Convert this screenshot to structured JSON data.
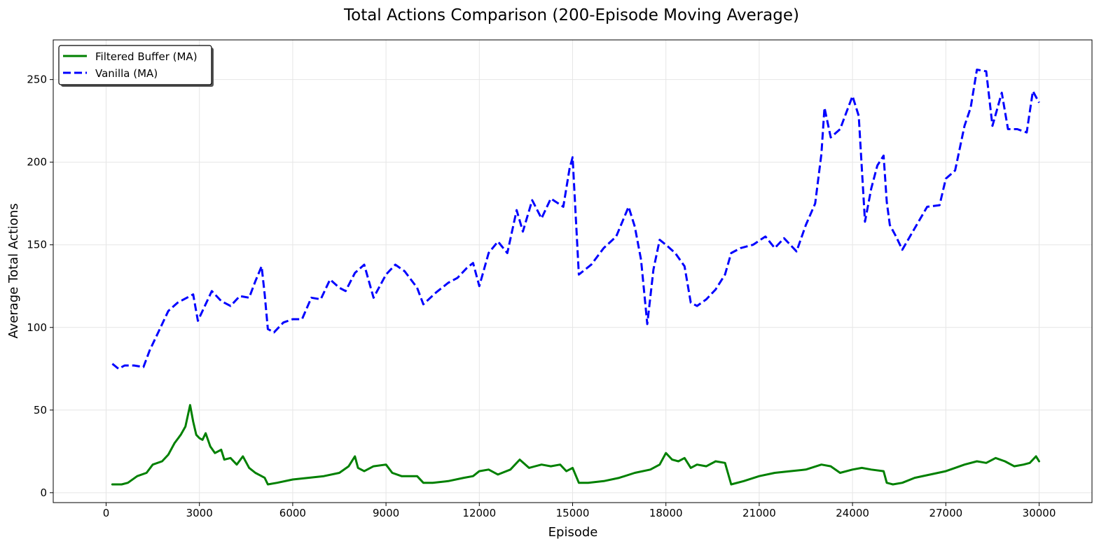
{
  "chart_data": {
    "type": "line",
    "title": "Total Actions Comparison (200-Episode Moving Average)",
    "xlabel": "Episode",
    "ylabel": "Average Total Actions",
    "xlim": [
      -1700,
      31700
    ],
    "ylim": [
      -6,
      274
    ],
    "xticks": [
      0,
      3000,
      6000,
      9000,
      12000,
      15000,
      18000,
      21000,
      24000,
      27000,
      30000
    ],
    "xtick_labels": [
      "0",
      "3000",
      "6000",
      "9000",
      "12000",
      "15000",
      "18000",
      "21000",
      "24000",
      "27000",
      "30000"
    ],
    "yticks": [
      0,
      50,
      100,
      150,
      200,
      250
    ],
    "ytick_labels": [
      "0",
      "50",
      "100",
      "150",
      "200",
      "250"
    ],
    "grid": true,
    "legend_position": "top-left",
    "series": [
      {
        "name": "Filtered Buffer (MA)",
        "color": "#008000",
        "style": "solid",
        "x": [
          200,
          500,
          700,
          1000,
          1300,
          1500,
          1800,
          2000,
          2200,
          2400,
          2550,
          2700,
          2800,
          2900,
          3000,
          3100,
          3200,
          3350,
          3500,
          3700,
          3800,
          4000,
          4200,
          4400,
          4600,
          4800,
          5000,
          5100,
          5200,
          5500,
          6000,
          6500,
          7000,
          7500,
          7800,
          8000,
          8100,
          8300,
          8600,
          9000,
          9200,
          9500,
          10000,
          10200,
          10500,
          11000,
          11500,
          11800,
          12000,
          12300,
          12600,
          13000,
          13300,
          13600,
          14000,
          14300,
          14600,
          14800,
          15000,
          15200,
          15500,
          16000,
          16500,
          17000,
          17500,
          17800,
          18000,
          18200,
          18400,
          18600,
          18800,
          19000,
          19300,
          19600,
          19900,
          20100,
          20500,
          21000,
          21500,
          22000,
          22500,
          23000,
          23300,
          23600,
          24000,
          24300,
          24600,
          25000,
          25100,
          25300,
          25600,
          26000,
          26500,
          27000,
          27300,
          27600,
          28000,
          28300,
          28600,
          28900,
          29200,
          29500,
          29700,
          29900,
          30000
        ],
        "y": [
          5,
          5,
          6,
          10,
          12,
          17,
          19,
          23,
          30,
          35,
          40,
          53,
          43,
          35,
          33,
          32,
          36,
          28,
          24,
          26,
          20,
          21,
          17,
          22,
          15,
          12,
          10,
          9,
          5,
          6,
          8,
          9,
          10,
          12,
          16,
          22,
          15,
          13,
          16,
          17,
          12,
          10,
          10,
          6,
          6,
          7,
          9,
          10,
          13,
          14,
          11,
          14,
          20,
          15,
          17,
          16,
          17,
          13,
          15,
          6,
          6,
          7,
          9,
          12,
          14,
          17,
          24,
          20,
          19,
          21,
          15,
          17,
          16,
          19,
          18,
          5,
          7,
          10,
          12,
          13,
          14,
          17,
          16,
          12,
          14,
          15,
          14,
          13,
          6,
          5,
          6,
          9,
          11,
          13,
          15,
          17,
          19,
          18,
          21,
          19,
          16,
          17,
          18,
          22,
          19
        ]
      },
      {
        "name": "Vanilla (MA)",
        "color": "#0000ff",
        "style": "dashed",
        "x": [
          200,
          400,
          600,
          900,
          1200,
          1400,
          1700,
          2000,
          2300,
          2600,
          2800,
          2950,
          3100,
          3400,
          3700,
          4000,
          4300,
          4600,
          4800,
          5000,
          5100,
          5200,
          5400,
          5700,
          6000,
          6300,
          6600,
          6900,
          7200,
          7500,
          7700,
          8000,
          8300,
          8600,
          9000,
          9300,
          9600,
          10000,
          10200,
          10600,
          11000,
          11300,
          11600,
          11800,
          12000,
          12300,
          12600,
          12900,
          13200,
          13400,
          13700,
          14000,
          14300,
          14700,
          14900,
          15000,
          15200,
          15600,
          16000,
          16400,
          16800,
          17000,
          17200,
          17400,
          17600,
          17800,
          18000,
          18300,
          18600,
          18800,
          19000,
          19300,
          19600,
          19900,
          20100,
          20400,
          20800,
          21200,
          21500,
          21800,
          22200,
          22500,
          22800,
          23000,
          23100,
          23300,
          23600,
          23800,
          24000,
          24200,
          24400,
          24600,
          24800,
          25000,
          25100,
          25200,
          25400,
          25600,
          26000,
          26400,
          26800,
          27000,
          27300,
          27600,
          27800,
          28000,
          28300,
          28500,
          28800,
          29000,
          29300,
          29600,
          29800,
          30000
        ],
        "y": [
          78,
          75,
          77,
          77,
          76,
          86,
          98,
          110,
          115,
          118,
          120,
          104,
          110,
          122,
          116,
          113,
          119,
          118,
          128,
          137,
          120,
          99,
          97,
          103,
          105,
          105,
          118,
          117,
          129,
          124,
          122,
          133,
          138,
          118,
          132,
          138,
          134,
          124,
          114,
          121,
          127,
          130,
          136,
          139,
          125,
          145,
          152,
          145,
          171,
          158,
          177,
          166,
          178,
          173,
          196,
          203,
          132,
          138,
          148,
          155,
          173,
          161,
          141,
          102,
          135,
          153,
          150,
          145,
          137,
          115,
          113,
          117,
          123,
          132,
          145,
          148,
          150,
          155,
          148,
          154,
          146,
          162,
          175,
          205,
          233,
          215,
          220,
          230,
          240,
          228,
          164,
          184,
          198,
          204,
          176,
          162,
          155,
          147,
          160,
          173,
          174,
          190,
          195,
          222,
          233,
          256,
          255,
          222,
          242,
          220,
          220,
          218,
          243,
          236
        ]
      }
    ]
  }
}
